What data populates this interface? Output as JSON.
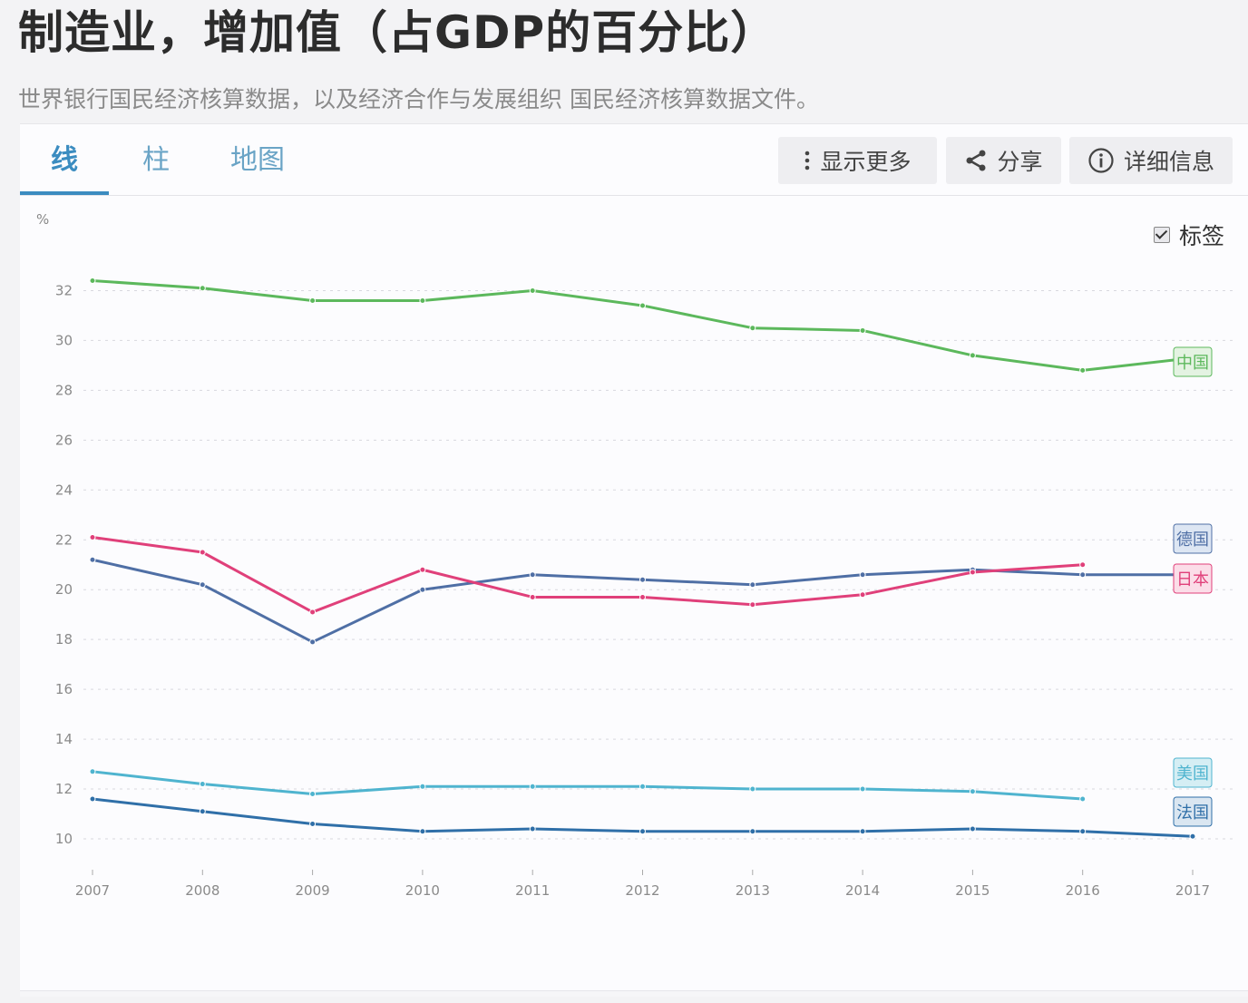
{
  "page": {
    "title": "制造业，增加值（占GDP的百分比）",
    "subtitle": "世界银行国民经济核算数据，以及经济合作与发展组织 国民经济核算数据文件。"
  },
  "tabs": [
    {
      "label": "线",
      "active": true
    },
    {
      "label": "柱",
      "active": false
    },
    {
      "label": "地图",
      "active": false
    }
  ],
  "toolbar": {
    "more_label": "显示更多",
    "share_label": "分享",
    "details_label": "详细信息"
  },
  "legend_toggle": {
    "label": "标签",
    "checked": true
  },
  "chart_data": {
    "type": "line",
    "ylabel": "%",
    "xlabel": "",
    "ylim": [
      10,
      33
    ],
    "yticks": [
      "10",
      "12",
      "14",
      "16",
      "18",
      "20",
      "22",
      "24",
      "26",
      "28",
      "30",
      "32"
    ],
    "x": [
      "2007",
      "2008",
      "2009",
      "2010",
      "2011",
      "2012",
      "2013",
      "2014",
      "2015",
      "2016",
      "2017"
    ],
    "grid": true,
    "series": [
      {
        "name": "中国",
        "color": "#5cb85c",
        "label_bg": "#e4f3e2",
        "values": [
          32.4,
          32.1,
          31.6,
          31.6,
          32.0,
          31.4,
          30.5,
          30.4,
          29.4,
          28.8,
          29.3
        ]
      },
      {
        "name": "德国",
        "color": "#4f6fa5",
        "label_bg": "#dde6f3",
        "values": [
          21.2,
          20.2,
          17.9,
          20.0,
          20.6,
          20.4,
          20.2,
          20.6,
          20.8,
          20.6,
          20.6
        ]
      },
      {
        "name": "日本",
        "color": "#e0407a",
        "label_bg": "#fbdde8",
        "values": [
          22.1,
          21.5,
          19.1,
          20.8,
          19.7,
          19.7,
          19.4,
          19.8,
          20.7,
          21.0,
          null
        ]
      },
      {
        "name": "美国",
        "color": "#4fb4cf",
        "label_bg": "#d5eef4",
        "values": [
          12.7,
          12.2,
          11.8,
          12.1,
          12.1,
          12.1,
          12.0,
          12.0,
          11.9,
          11.6,
          null
        ]
      },
      {
        "name": "法国",
        "color": "#2f6fa8",
        "label_bg": "#dae6f1",
        "values": [
          11.6,
          11.1,
          10.6,
          10.3,
          10.4,
          10.3,
          10.3,
          10.3,
          10.4,
          10.3,
          10.1
        ]
      }
    ],
    "label_order": [
      "中国",
      "德国",
      "日本",
      "美国",
      "法国"
    ]
  }
}
